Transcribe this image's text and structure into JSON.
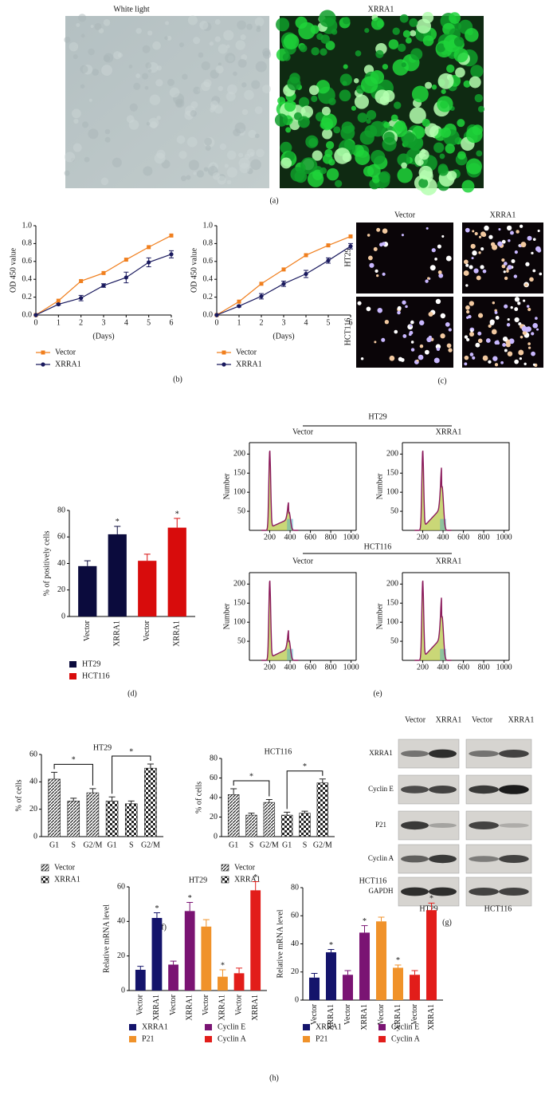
{
  "panel_a": {
    "left_title": "White light",
    "right_title": "XRRA1",
    "caption": "(a)"
  },
  "panel_b": {
    "caption": "(b)"
  },
  "panel_c": {
    "columns": [
      "Vector",
      "XRRA1"
    ],
    "rows": [
      "HT29",
      "HCT116"
    ],
    "caption": "(c)"
  },
  "panel_d": {
    "caption": "(d)"
  },
  "panel_e": {
    "groups": [
      "HT29",
      "HCT116"
    ],
    "columns": [
      "Vector",
      "XRRA1"
    ],
    "caption": "(e)"
  },
  "panel_f": {
    "caption": "(f)"
  },
  "panel_g": {
    "rows": [
      "XRRA1",
      "Cyclin E",
      "P21",
      "Cyclin A",
      "GAPDH"
    ],
    "columns": [
      "Vector",
      "XRRA1",
      "Vector",
      "XRRA1"
    ],
    "lines": [
      "HT29",
      "HCT116"
    ],
    "caption": "(g)"
  },
  "panel_h": {
    "caption": "(h)"
  },
  "chart_data": [
    {
      "type": "line",
      "xlabel": "(Days)",
      "ylabel": "OD 450 value",
      "x": [
        0,
        1,
        2,
        3,
        4,
        5,
        6
      ],
      "xlim": [
        0,
        6
      ],
      "xticks": [
        0,
        1,
        2,
        3,
        4,
        5,
        6
      ],
      "ylim": [
        0,
        1
      ],
      "yticks": [
        {
          "value": 0,
          "label": "0.0"
        },
        0.2,
        0.4,
        0.6,
        0.8,
        {
          "value": 1,
          "label": "1.0"
        }
      ],
      "series": [
        {
          "name": "Vector",
          "color": "#f07f1e",
          "marker": "square",
          "values": [
            0,
            0.16,
            0.38,
            0.47,
            0.62,
            0.76,
            0.89
          ]
        },
        {
          "name": "XRRA1",
          "color": "#1a1a5e",
          "marker": "circle",
          "values": [
            0,
            0.12,
            0.19,
            0.33,
            0.42,
            0.59,
            0.68
          ],
          "errors": [
            0,
            0.01,
            0.03,
            0.02,
            0.06,
            0.05,
            0.04
          ]
        }
      ]
    },
    {
      "type": "line",
      "xlabel": "(Days)",
      "ylabel": "OD 450 value",
      "x": [
        0,
        1,
        2,
        3,
        4,
        5,
        6
      ],
      "xlim": [
        0,
        6
      ],
      "xticks": [
        0,
        1,
        2,
        3,
        4,
        5,
        6
      ],
      "ylim": [
        0,
        1
      ],
      "yticks": [
        {
          "value": 0,
          "label": "0.0"
        },
        0.2,
        0.4,
        0.6,
        0.8,
        {
          "value": 1,
          "label": "1.0"
        }
      ],
      "series": [
        {
          "name": "Vector",
          "color": "#f07f1e",
          "marker": "square",
          "values": [
            0,
            0.15,
            0.35,
            0.51,
            0.67,
            0.78,
            0.88
          ]
        },
        {
          "name": "XRRA1",
          "color": "#1a1a5e",
          "marker": "circle",
          "values": [
            0,
            0.1,
            0.21,
            0.35,
            0.46,
            0.61,
            0.77
          ],
          "errors": [
            0,
            0.01,
            0.03,
            0.03,
            0.04,
            0.03,
            0.03
          ]
        }
      ]
    },
    {
      "type": "bar",
      "ylabel": "% of positively cells",
      "rotated_categories": true,
      "categories": [
        "Vector",
        "XRRA1",
        "Vector",
        "XRRA1"
      ],
      "ylim": [
        0,
        80
      ],
      "yticks": [
        0,
        20,
        40,
        60,
        80
      ],
      "series": [
        {
          "name": "HT29",
          "color": "#0b0b3d",
          "values": [
            38,
            62,
            null,
            null
          ],
          "errors": [
            4,
            6,
            null,
            null
          ]
        },
        {
          "name": "HCT116",
          "color": "#d80c0c",
          "values": [
            null,
            null,
            42,
            67
          ],
          "errors": [
            null,
            null,
            5,
            7
          ]
        }
      ],
      "annotations": [
        {
          "text": "*",
          "index": 1
        },
        {
          "text": "*",
          "index": 3
        }
      ]
    },
    {
      "type": "flow",
      "ylabel": "Number",
      "ylim": [
        0,
        230
      ],
      "yticks": [
        50,
        100,
        150,
        200
      ],
      "xlim": [
        0,
        1050
      ],
      "xticks": [
        200,
        400,
        600,
        800,
        1000
      ]
    },
    {
      "type": "flow",
      "ylabel": "Number",
      "ylim": [
        0,
        230
      ],
      "yticks": [
        50,
        100,
        150,
        200
      ],
      "xlim": [
        0,
        1050
      ],
      "xticks": [
        200,
        400,
        600,
        800,
        1000
      ]
    },
    {
      "type": "flow",
      "ylabel": "Number",
      "ylim": [
        0,
        230
      ],
      "yticks": [
        50,
        100,
        150,
        200
      ],
      "xlim": [
        0,
        1050
      ],
      "xticks": [
        200,
        400,
        600,
        800,
        1000
      ]
    },
    {
      "type": "flow",
      "ylabel": "Number",
      "ylim": [
        0,
        230
      ],
      "yticks": [
        50,
        100,
        150,
        200
      ],
      "xlim": [
        0,
        1050
      ],
      "xticks": [
        200,
        400,
        600,
        800,
        1000
      ]
    },
    {
      "type": "bar",
      "title": "HT29",
      "ylabel": "% of cells",
      "categories": [
        "G1",
        "S",
        "G2/M",
        "G1",
        "S",
        "G2/M"
      ],
      "ylim": [
        0,
        60
      ],
      "yticks": [
        0,
        20,
        40,
        60
      ],
      "series": [
        {
          "name": "Vector",
          "pattern": "hatch",
          "values": [
            42,
            26,
            32,
            null,
            null,
            null
          ],
          "errors": [
            5,
            2,
            3,
            null,
            null,
            null
          ]
        },
        {
          "name": "XRRA1",
          "pattern": "check",
          "values": [
            null,
            null,
            null,
            26,
            24,
            50
          ],
          "errors": [
            null,
            null,
            null,
            3,
            2,
            3
          ]
        }
      ],
      "annotations": [
        {
          "text": "*",
          "from": 0,
          "to": 2
        },
        {
          "text": "*",
          "from": 3,
          "to": 5
        }
      ]
    },
    {
      "type": "bar",
      "title": "HCT116",
      "ylabel": "% of cells",
      "categories": [
        "G1",
        "S",
        "G2/M",
        "G1",
        "S",
        "G2/M"
      ],
      "ylim": [
        0,
        80
      ],
      "yticks": [
        0,
        20,
        40,
        60,
        80
      ],
      "series": [
        {
          "name": "Vector",
          "pattern": "hatch",
          "values": [
            43,
            22,
            35,
            null,
            null,
            null
          ],
          "errors": [
            6,
            2,
            3,
            null,
            null,
            null
          ]
        },
        {
          "name": "XRRA1",
          "pattern": "check",
          "values": [
            null,
            null,
            null,
            22,
            24,
            55
          ],
          "errors": [
            null,
            null,
            null,
            3,
            2,
            4
          ]
        }
      ],
      "annotations": [
        {
          "text": "*",
          "from": 0,
          "to": 2
        },
        {
          "text": "*",
          "from": 3,
          "to": 5
        }
      ]
    },
    {
      "type": "bar",
      "title": "HT29",
      "ylabel": "Relative mRNA level",
      "rotated_categories": true,
      "categories": [
        "Vector",
        "XRRA1",
        "Vector",
        "XRRA1",
        "Vector",
        "XRRA1",
        "Vector",
        "XRRA1"
      ],
      "ylim": [
        0,
        60
      ],
      "yticks": [
        0,
        20,
        40,
        60
      ],
      "series": [
        {
          "name": "XRRA1",
          "color": "#14146b",
          "values": [
            12,
            42,
            null,
            null,
            null,
            null,
            null,
            null
          ],
          "errors": [
            2,
            3,
            null,
            null,
            null,
            null,
            null,
            null
          ]
        },
        {
          "name": "Cyclin E",
          "color": "#7a1473",
          "values": [
            null,
            null,
            15,
            46,
            null,
            null,
            null,
            null
          ],
          "errors": [
            null,
            null,
            2,
            5,
            null,
            null,
            null,
            null
          ]
        },
        {
          "name": "P21",
          "color": "#f0922a",
          "values": [
            null,
            null,
            null,
            null,
            37,
            8,
            null,
            null
          ],
          "errors": [
            null,
            null,
            null,
            null,
            4,
            4,
            null,
            null
          ]
        },
        {
          "name": "Cyclin A",
          "color": "#e21d1a",
          "values": [
            null,
            null,
            null,
            null,
            null,
            null,
            10,
            58
          ],
          "errors": [
            null,
            null,
            null,
            null,
            null,
            null,
            3,
            5
          ]
        }
      ],
      "annotations": [
        {
          "text": "*",
          "index": 1
        },
        {
          "text": "*",
          "index": 3
        },
        {
          "text": "*",
          "index": 5
        },
        {
          "text": "*",
          "index": 7
        }
      ]
    },
    {
      "type": "bar",
      "title": "HCT116",
      "ylabel": "Relative mRNA level",
      "rotated_categories": true,
      "categories": [
        "Vector",
        "XRRA1",
        "Vector",
        "XRRA1",
        "Vector",
        "XRRA1",
        "Vector",
        "XRRA1"
      ],
      "ylim": [
        0,
        80
      ],
      "yticks": [
        0,
        20,
        40,
        60,
        80
      ],
      "series": [
        {
          "name": "XRRA1",
          "color": "#14146b",
          "values": [
            16,
            34,
            null,
            null,
            null,
            null,
            null,
            null
          ],
          "errors": [
            3,
            2,
            null,
            null,
            null,
            null,
            null,
            null
          ]
        },
        {
          "name": "Cyclin E",
          "color": "#7a1473",
          "values": [
            null,
            null,
            18,
            48,
            null,
            null,
            null,
            null
          ],
          "errors": [
            null,
            null,
            3,
            5,
            null,
            null,
            null,
            null
          ]
        },
        {
          "name": "P21",
          "color": "#f0922a",
          "values": [
            null,
            null,
            null,
            null,
            56,
            23,
            null,
            null
          ],
          "errors": [
            null,
            null,
            null,
            null,
            3,
            2,
            null,
            null
          ]
        },
        {
          "name": "Cyclin A",
          "color": "#e21d1a",
          "values": [
            null,
            null,
            null,
            null,
            null,
            null,
            18,
            64
          ],
          "errors": [
            null,
            null,
            null,
            null,
            null,
            null,
            3,
            5
          ]
        }
      ],
      "annotations": [
        {
          "text": "*",
          "index": 1
        },
        {
          "text": "*",
          "index": 3
        },
        {
          "text": "*",
          "index": 5
        },
        {
          "text": "*",
          "index": 7
        }
      ]
    }
  ]
}
